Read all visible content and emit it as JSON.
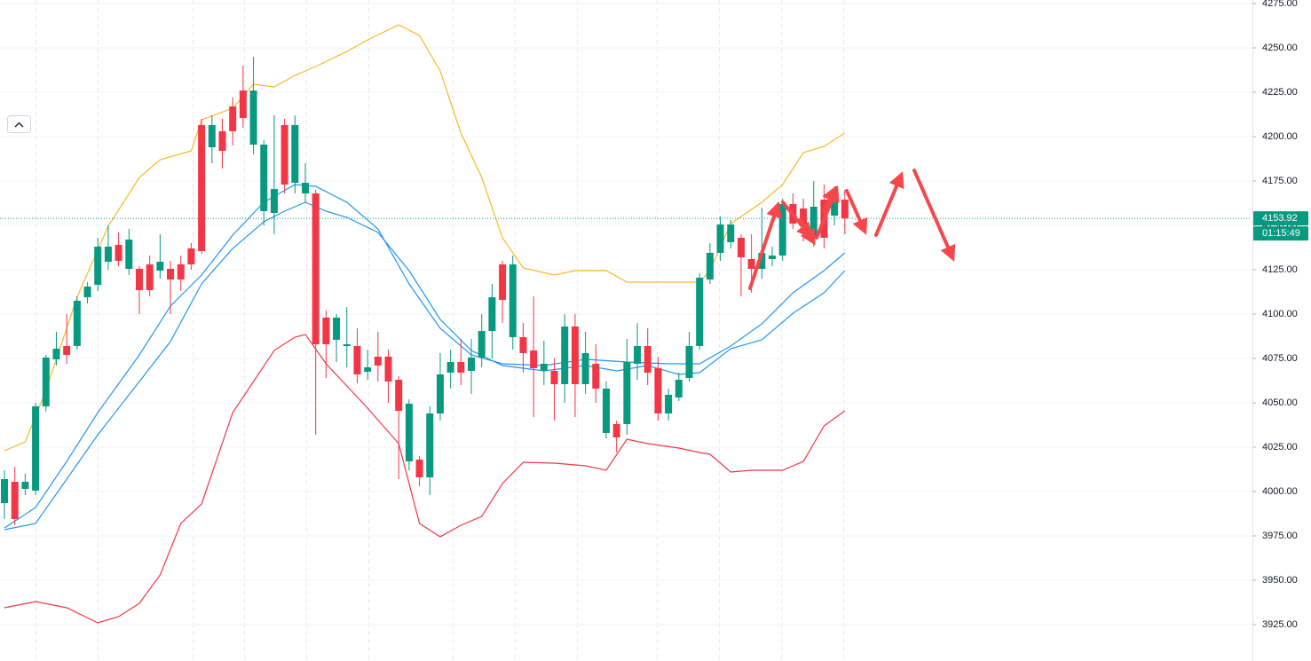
{
  "chart_data": {
    "type": "candlestick",
    "up_color": "#089981",
    "down_color": "#f23645",
    "categories": [
      null,
      null,
      null,
      null,
      null,
      null,
      null,
      null,
      null,
      null,
      null,
      null,
      null,
      null,
      null,
      null,
      null,
      null,
      null,
      null,
      null,
      null,
      null,
      null,
      null,
      null,
      null,
      null,
      null,
      null,
      null,
      null,
      null,
      null,
      null,
      null,
      null,
      null,
      null,
      null,
      null,
      null,
      null,
      null,
      null,
      null,
      null,
      null,
      null,
      null,
      null,
      null,
      null,
      null,
      null,
      null,
      null,
      null,
      null,
      null,
      null,
      null,
      null,
      null,
      null,
      null,
      null,
      null,
      null,
      null,
      null,
      null,
      null,
      null,
      null,
      null,
      null,
      null,
      null,
      null,
      null,
      null
    ],
    "open": [
      3993.5,
      4005.5,
      4001.5,
      4000.5,
      4048,
      4074.5,
      4082,
      4082,
      4109.5,
      4116.5,
      4129.5,
      4139,
      4125.5,
      4125.5,
      4128,
      4124.5,
      4125.5,
      4128,
      4137,
      4206.5,
      4194,
      4203,
      4217,
      4226,
      4195.5,
      4158,
      4157,
      4206.5,
      4174,
      4168,
      4168,
      4098,
      4085.5,
      4082,
      4082,
      4067.5,
      4076,
      4076,
      4063,
      4017,
      4018,
      4008,
      4044,
      4067,
      4073,
      4068,
      4075.5,
      4090.5,
      4128,
      4087,
      4087,
      4079.5,
      4068,
      4068,
      4060.5,
      4093,
      4060.5,
      4072,
      4033,
      4038,
      4038,
      4072,
      4082,
      4069.5,
      4044,
      4053,
      4064,
      4082,
      4119.5,
      4134.5,
      4140.5,
      4143,
      4131,
      4125.5,
      4131,
      4133,
      4162,
      4159.5,
      4143,
      4164.5,
      4155.5,
      4164.5
    ],
    "high": [
      4012,
      4014,
      4010,
      4050,
      4077,
      4090,
      4100,
      4110,
      4118,
      4143,
      4150,
      4146,
      4148,
      4127,
      4133,
      4145,
      4130,
      4133,
      4140,
      4210,
      4212,
      4210,
      4222,
      4240,
      4245,
      4198,
      4212,
      4210,
      4212,
      4185,
      4170,
      4102,
      4100,
      4104,
      4092,
      4080,
      4090,
      4080,
      4065,
      4052,
      4020,
      4048,
      4078,
      4080,
      4086,
      4086,
      4100,
      4117,
      4130,
      4133,
      4095,
      4110,
      4085,
      4075,
      4100,
      4100,
      4090,
      4083,
      4062,
      4040,
      4086,
      4095,
      4092,
      4076,
      4058,
      4067,
      4090,
      4123,
      4140,
      4155,
      4153,
      4145,
      4145,
      4160,
      4138,
      4165,
      4168,
      4165,
      4175,
      4173,
      4172,
      4170
    ],
    "low": [
      3984.5,
      3981,
      3998,
      3998,
      4045,
      4071,
      4072,
      4080,
      4106,
      4113,
      4125,
      4127,
      4122,
      4100,
      4110,
      4120,
      4100,
      4113,
      4125,
      4134,
      4185,
      4182,
      4195,
      4205,
      4190,
      4150,
      4145,
      4168,
      4168,
      4163,
      4032,
      4064,
      4073,
      4070,
      4061,
      4063,
      4062,
      4050,
      4007,
      4012,
      4003,
      3998,
      4040,
      4058,
      4060,
      4055,
      4070,
      4075,
      4095,
      4080,
      4067,
      4042,
      4060,
      4040,
      4050,
      4042,
      4055,
      4050,
      4030,
      4022,
      4032,
      4063,
      4060,
      4040,
      4040,
      4051,
      4062,
      4080,
      4117,
      4130,
      4137,
      4110,
      4112,
      4120,
      4127,
      4130,
      4148,
      4141,
      4138,
      4137,
      4150,
      4145
    ],
    "close": [
      4007,
      3984.5,
      4005.5,
      4048,
      4075.5,
      4080.5,
      4077,
      4107.5,
      4115.5,
      4138,
      4138,
      4130,
      4142,
      4113.5,
      4113.5,
      4129.5,
      4119.5,
      4119.5,
      4128,
      4135.5,
      4206.5,
      4192,
      4203,
      4210.5,
      4226,
      4195.5,
      4170.5,
      4173,
      4206.5,
      4174,
      4083,
      4083,
      4098,
      4083,
      4066,
      4070,
      4071,
      4062,
      4045.5,
      4049.5,
      4008,
      4044,
      4066,
      4073,
      4067,
      4075.5,
      4090.5,
      4109.5,
      4108,
      4128,
      4078,
      4069.5,
      4072,
      4060.5,
      4093,
      4060.5,
      4078,
      4058,
      4058,
      4030.5,
      4073,
      4082,
      4067,
      4044,
      4054.5,
      4063,
      4082,
      4120.5,
      4134.5,
      4150.5,
      4150.5,
      4132,
      4125.5,
      4134.5,
      4133,
      4162,
      4151,
      4149.5,
      4160.5,
      4143,
      4165,
      4153.92
    ],
    "lines": [
      {
        "color": "#f7b924",
        "x": [
          0,
          2,
          4,
          7,
          10,
          13,
          15,
          18,
          19,
          22,
          24,
          26,
          28,
          30,
          33,
          35,
          38,
          40,
          42,
          44,
          46,
          48,
          50,
          53,
          55,
          58,
          60,
          65,
          67,
          68,
          70,
          73,
          75,
          77,
          79,
          81
        ],
        "values": [
          4023,
          4028,
          4057,
          4109.5,
          4149.5,
          4177,
          4187,
          4192,
          4209.5,
          4216,
          4229.5,
          4228,
          4234.5,
          4239.5,
          4248,
          4254.5,
          4263,
          4257,
          4237,
          4202,
          4177,
          4143,
          4126,
          4122,
          4124.5,
          4124.5,
          4118,
          4118,
          4118,
          4124.5,
          4151,
          4163,
          4173,
          4191,
          4194.5,
          4202
        ]
      },
      {
        "color": "#f23645",
        "x": [
          0,
          3,
          6,
          9,
          11,
          13,
          15,
          17,
          19,
          22,
          24,
          26,
          28,
          29,
          31,
          33,
          35,
          38,
          40,
          42,
          44,
          46,
          48,
          50,
          53,
          56,
          58,
          60,
          62,
          65,
          67,
          68,
          70,
          72,
          75,
          77,
          79,
          81
        ],
        "values": [
          3934.5,
          3938,
          3934.5,
          3926,
          3929.5,
          3937,
          3953,
          3982,
          3993,
          4044.5,
          4062,
          4079.5,
          4087,
          4088.5,
          4072,
          4059.5,
          4047,
          4027,
          3982,
          3974.5,
          3981,
          3986,
          4004.5,
          4016.5,
          4016,
          4014.5,
          4012,
          4029.5,
          4027,
          4024.5,
          4022,
          4021,
          4011,
          4012,
          4012,
          4017,
          4037,
          4045.5
        ]
      },
      {
        "color": "#2196f3",
        "x": [
          0,
          3,
          6,
          9,
          13,
          16,
          19,
          22,
          25,
          28,
          30,
          33,
          36,
          39,
          42,
          45,
          48,
          52,
          56,
          60,
          64,
          67,
          70,
          73,
          76,
          79,
          81
        ],
        "values": [
          3979.5,
          3991,
          4017,
          4044.5,
          4077,
          4104.5,
          4122,
          4144.5,
          4163,
          4173,
          4172,
          4163,
          4148,
          4117,
          4092,
          4077,
          4072,
          4071,
          4074.5,
          4073,
          4072,
          4072,
          4082,
          4094.5,
          4112,
          4124.5,
          4134.5
        ]
      },
      {
        "color": "#2196f3",
        "x": [
          0,
          3,
          6,
          9,
          13,
          16,
          19,
          22,
          25,
          27,
          29,
          31,
          33,
          36,
          39,
          42,
          45,
          48,
          52,
          56,
          59,
          62,
          65,
          67,
          70,
          73,
          76,
          79,
          81
        ],
        "values": [
          3978.5,
          3982,
          4007,
          4032,
          4062,
          4084.5,
          4117,
          4137,
          4152,
          4158,
          4163,
          4158,
          4154.5,
          4146,
          4124.5,
          4097,
          4079.5,
          4071,
          4068,
          4071,
          4068,
          4071,
          4066,
          4067,
          4080.5,
          4085.5,
          4100.5,
          4112,
          4124.5
        ]
      }
    ],
    "xlim": [
      -0.43,
      120.2
    ],
    "ylim": [
      3904.5,
      4277
    ],
    "yticks": [
      {
        "value": 4275,
        "label": "4275.00"
      },
      {
        "value": 4250,
        "label": "4250.00"
      },
      {
        "value": 4225,
        "label": "4225.00"
      },
      {
        "value": 4200,
        "label": "4200.00"
      },
      {
        "value": 4175,
        "label": "4175.00"
      },
      {
        "value": 4150,
        "label": "4150.00"
      },
      {
        "value": 4125,
        "label": "4125.00"
      },
      {
        "value": 4100,
        "label": "4100.00"
      },
      {
        "value": 4075,
        "label": "4075.00"
      },
      {
        "value": 4050,
        "label": "4050.00"
      },
      {
        "value": 4025,
        "label": "4025.00"
      },
      {
        "value": 4000,
        "label": "4000.00"
      },
      {
        "value": 3975,
        "label": "3975.00"
      },
      {
        "value": 3950,
        "label": "3950.00"
      },
      {
        "value": 3925,
        "label": "3925.00"
      }
    ],
    "grid": true,
    "last_price": 4153.92,
    "price_color": "#089981",
    "countdown": "01:15:49"
  }
}
